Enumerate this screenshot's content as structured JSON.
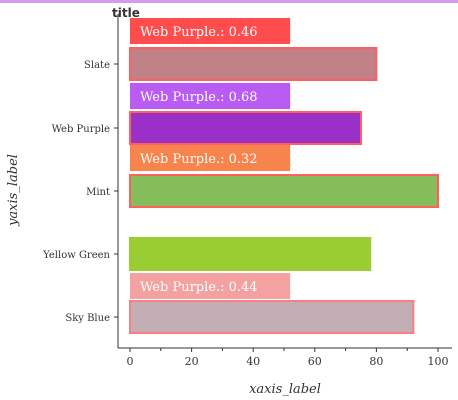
{
  "chart_data": {
    "type": "bar",
    "orientation": "horizontal",
    "title": "title",
    "xlabel": "xaxis_label",
    "ylabel": "yaxis_label",
    "xlim": [
      0,
      100
    ],
    "xticks": [
      0,
      20,
      40,
      60,
      80,
      100
    ],
    "categories": [
      "Sky Blue",
      "Yellow Green",
      "Mint",
      "Web Purple",
      "Slate"
    ],
    "values": [
      92,
      78,
      100,
      75,
      80
    ],
    "bar_colors": [
      "#c4aeb6",
      "#9acd32",
      "#84bd5a",
      "#9b30c8",
      "#c08286"
    ],
    "bar_edge_colors": [
      "#fa7f7f",
      "#9acd32",
      "#ff5f5f",
      "#ff5f5f",
      "#ff5f5f"
    ],
    "annotations": [
      {
        "text": "Web Purple.: 0.44",
        "between": [
          "Sky Blue",
          "Yellow Green"
        ],
        "color": "#f4a1a1",
        "span": [
          0,
          52
        ]
      },
      {
        "text": "Web Purple.: 0.32",
        "between": [
          "Mint",
          "Web Purple"
        ],
        "color": "#f7844d",
        "span": [
          0,
          52
        ]
      },
      {
        "text": "Web Purple.: 0.68",
        "between": [
          "Web Purple",
          "Slate"
        ],
        "color": "#b95cf4",
        "span": [
          0,
          52
        ]
      },
      {
        "text": "Web Purple.: 0.46",
        "between": [
          "Slate",
          "top"
        ],
        "color": "#ff4d4d",
        "span": [
          0,
          52
        ]
      }
    ],
    "grid": false,
    "accent_band_color": "#d39cf0"
  }
}
